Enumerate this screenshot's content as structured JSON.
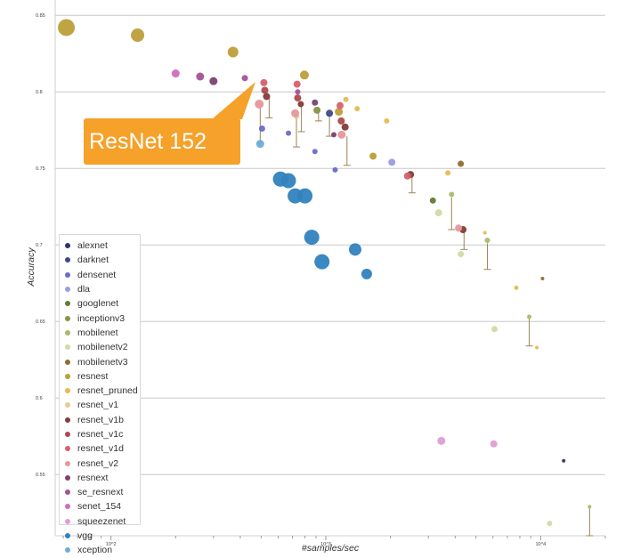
{
  "chart_data": {
    "type": "scatter",
    "title": "",
    "xlabel": "#samples/sec",
    "ylabel": "Accuracy",
    "xscale": "log",
    "xlim": [
      55,
      20000
    ],
    "ylim": [
      0.51,
      0.86
    ],
    "x_ticks": [
      {
        "value": 100,
        "label": "10^2"
      },
      {
        "value": 1000,
        "label": "10^3"
      },
      {
        "value": 10000,
        "label": "10^4"
      }
    ],
    "y_ticks": [
      {
        "value": 0.85,
        "label": "0.85"
      },
      {
        "value": 0.8,
        "label": "0.8"
      },
      {
        "value": 0.75,
        "label": "0.75"
      },
      {
        "value": 0.7,
        "label": "0.7"
      },
      {
        "value": 0.65,
        "label": "0.65"
      },
      {
        "value": 0.6,
        "label": "0.6"
      },
      {
        "value": 0.55,
        "label": "0.55"
      }
    ],
    "legend_position": "lower-left",
    "series": [
      {
        "name": "alexnet",
        "color": "#31336b",
        "points": [
          {
            "x": 12800,
            "y": 0.559,
            "s": 2
          }
        ]
      },
      {
        "name": "darknet",
        "color": "#3b4a8c",
        "points": [
          {
            "x": 1040,
            "y": 0.786,
            "s": 4
          }
        ]
      },
      {
        "name": "densenet",
        "color": "#6a6bcb",
        "points": [
          {
            "x": 505,
            "y": 0.776,
            "s": 3.5
          },
          {
            "x": 670,
            "y": 0.773,
            "s": 3
          },
          {
            "x": 890,
            "y": 0.761,
            "s": 3
          },
          {
            "x": 1105,
            "y": 0.749,
            "s": 3
          }
        ]
      },
      {
        "name": "dla",
        "color": "#9d9de0",
        "points": [
          {
            "x": 2030,
            "y": 0.754,
            "s": 4
          }
        ]
      },
      {
        "name": "googlenet",
        "color": "#647a36",
        "points": [
          {
            "x": 3150,
            "y": 0.729,
            "s": 3.5
          }
        ]
      },
      {
        "name": "inceptionv3",
        "color": "#859645",
        "points": [
          {
            "x": 910,
            "y": 0.788,
            "s": 4
          }
        ]
      },
      {
        "name": "mobilenet",
        "color": "#a8ba6a",
        "points": [
          {
            "x": 3850,
            "y": 0.733,
            "s": 3
          },
          {
            "x": 5650,
            "y": 0.703,
            "s": 3
          },
          {
            "x": 8850,
            "y": 0.653,
            "s": 2.5
          },
          {
            "x": 16900,
            "y": 0.529,
            "s": 2
          }
        ]
      },
      {
        "name": "mobilenetv2",
        "color": "#cfdba8",
        "points": [
          {
            "x": 3350,
            "y": 0.721,
            "s": 4
          },
          {
            "x": 4250,
            "y": 0.694,
            "s": 3.5
          },
          {
            "x": 6100,
            "y": 0.645,
            "s": 3.5
          },
          {
            "x": 11000,
            "y": 0.518,
            "s": 3
          }
        ]
      },
      {
        "name": "mobilenetv3",
        "color": "#8c6d31",
        "points": [
          {
            "x": 4250,
            "y": 0.753,
            "s": 3.5
          },
          {
            "x": 10200,
            "y": 0.678,
            "s": 2
          }
        ]
      },
      {
        "name": "resnest",
        "color": "#bd9e39",
        "points": [
          {
            "x": 62,
            "y": 0.842,
            "s": 9.5
          },
          {
            "x": 133,
            "y": 0.837,
            "s": 7.5
          },
          {
            "x": 370,
            "y": 0.826,
            "s": 6
          },
          {
            "x": 795,
            "y": 0.811,
            "s": 5
          },
          {
            "x": 1150,
            "y": 0.787,
            "s": 4.5
          },
          {
            "x": 1660,
            "y": 0.758,
            "s": 4
          }
        ]
      },
      {
        "name": "resnet_pruned",
        "color": "#e7ba52",
        "points": [
          {
            "x": 1240,
            "y": 0.795,
            "s": 3
          },
          {
            "x": 1400,
            "y": 0.789,
            "s": 3
          },
          {
            "x": 1920,
            "y": 0.781,
            "s": 3
          },
          {
            "x": 3700,
            "y": 0.747,
            "s": 3
          },
          {
            "x": 5500,
            "y": 0.708,
            "s": 2
          },
          {
            "x": 7700,
            "y": 0.672,
            "s": 2.5
          },
          {
            "x": 9600,
            "y": 0.633,
            "s": 2
          }
        ]
      },
      {
        "name": "resnet_v1",
        "color": "#e7cb94",
        "points": [
          {
            "x": 730,
            "y": 0.784,
            "s": 3
          }
        ]
      },
      {
        "name": "resnet_v1b",
        "color": "#843c39",
        "points": [
          {
            "x": 530,
            "y": 0.797,
            "s": 4
          },
          {
            "x": 765,
            "y": 0.792,
            "s": 3.5
          },
          {
            "x": 1230,
            "y": 0.777,
            "s": 4
          },
          {
            "x": 2480,
            "y": 0.746,
            "s": 4
          },
          {
            "x": 4350,
            "y": 0.71,
            "s": 4
          }
        ]
      },
      {
        "name": "resnet_v1c",
        "color": "#ad494a",
        "points": [
          {
            "x": 520,
            "y": 0.801,
            "s": 4
          },
          {
            "x": 740,
            "y": 0.796,
            "s": 4
          },
          {
            "x": 1180,
            "y": 0.781,
            "s": 4
          }
        ]
      },
      {
        "name": "resnet_v1d",
        "color": "#d6616b",
        "points": [
          {
            "x": 515,
            "y": 0.806,
            "s": 4
          },
          {
            "x": 735,
            "y": 0.805,
            "s": 4
          },
          {
            "x": 1165,
            "y": 0.791,
            "s": 4
          },
          {
            "x": 2400,
            "y": 0.745,
            "s": 4
          }
        ]
      },
      {
        "name": "resnet_v2",
        "color": "#e7969c",
        "points": [
          {
            "x": 490,
            "y": 0.792,
            "s": 5
          },
          {
            "x": 720,
            "y": 0.786,
            "s": 4.5
          },
          {
            "x": 1185,
            "y": 0.772,
            "s": 4.5
          },
          {
            "x": 4150,
            "y": 0.711,
            "s": 4
          }
        ]
      },
      {
        "name": "resnext",
        "color": "#7b4173",
        "points": [
          {
            "x": 300,
            "y": 0.807,
            "s": 4.5
          },
          {
            "x": 890,
            "y": 0.793,
            "s": 3.5
          },
          {
            "x": 1090,
            "y": 0.772,
            "s": 3
          }
        ]
      },
      {
        "name": "se_resnext",
        "color": "#a55194",
        "points": [
          {
            "x": 260,
            "y": 0.81,
            "s": 4.5
          },
          {
            "x": 420,
            "y": 0.809,
            "s": 3.5
          },
          {
            "x": 740,
            "y": 0.8,
            "s": 3
          }
        ]
      },
      {
        "name": "senet_154",
        "color": "#ce6dbd",
        "points": [
          {
            "x": 200,
            "y": 0.812,
            "s": 4.5
          }
        ]
      },
      {
        "name": "squeezenet",
        "color": "#de9ed6",
        "points": [
          {
            "x": 3450,
            "y": 0.572,
            "s": 4.5
          },
          {
            "x": 6050,
            "y": 0.57,
            "s": 4
          }
        ]
      },
      {
        "name": "vgg",
        "color": "#3182bd",
        "points": [
          {
            "x": 615,
            "y": 0.743,
            "s": 8.5
          },
          {
            "x": 670,
            "y": 0.742,
            "s": 8.5
          },
          {
            "x": 720,
            "y": 0.732,
            "s": 8.5
          },
          {
            "x": 800,
            "y": 0.732,
            "s": 8.5
          },
          {
            "x": 860,
            "y": 0.705,
            "s": 8.5
          },
          {
            "x": 960,
            "y": 0.689,
            "s": 8.5
          },
          {
            "x": 1370,
            "y": 0.697,
            "s": 7
          },
          {
            "x": 1550,
            "y": 0.681,
            "s": 6
          }
        ]
      },
      {
        "name": "xception",
        "color": "#6baed6",
        "points": [
          {
            "x": 495,
            "y": 0.766,
            "s": 4.5
          }
        ]
      }
    ],
    "error_bars": [
      {
        "x": 495,
        "low": 0.767,
        "high": 0.792
      },
      {
        "x": 545,
        "low": 0.783,
        "high": 0.796
      },
      {
        "x": 730,
        "low": 0.764,
        "high": 0.785
      },
      {
        "x": 770,
        "low": 0.774,
        "high": 0.791
      },
      {
        "x": 925,
        "low": 0.781,
        "high": 0.788
      },
      {
        "x": 1040,
        "low": 0.771,
        "high": 0.785
      },
      {
        "x": 1255,
        "low": 0.752,
        "high": 0.771
      },
      {
        "x": 2520,
        "low": 0.734,
        "high": 0.745
      },
      {
        "x": 3850,
        "low": 0.71,
        "high": 0.731
      },
      {
        "x": 4400,
        "low": 0.697,
        "high": 0.71
      },
      {
        "x": 5650,
        "low": 0.684,
        "high": 0.701
      },
      {
        "x": 8850,
        "low": 0.634,
        "high": 0.652
      },
      {
        "x": 16900,
        "low": 0.51,
        "high": 0.528
      }
    ],
    "annotation": {
      "text": "ResNet 152",
      "target_x": 435,
      "target_y": 0.8
    }
  }
}
